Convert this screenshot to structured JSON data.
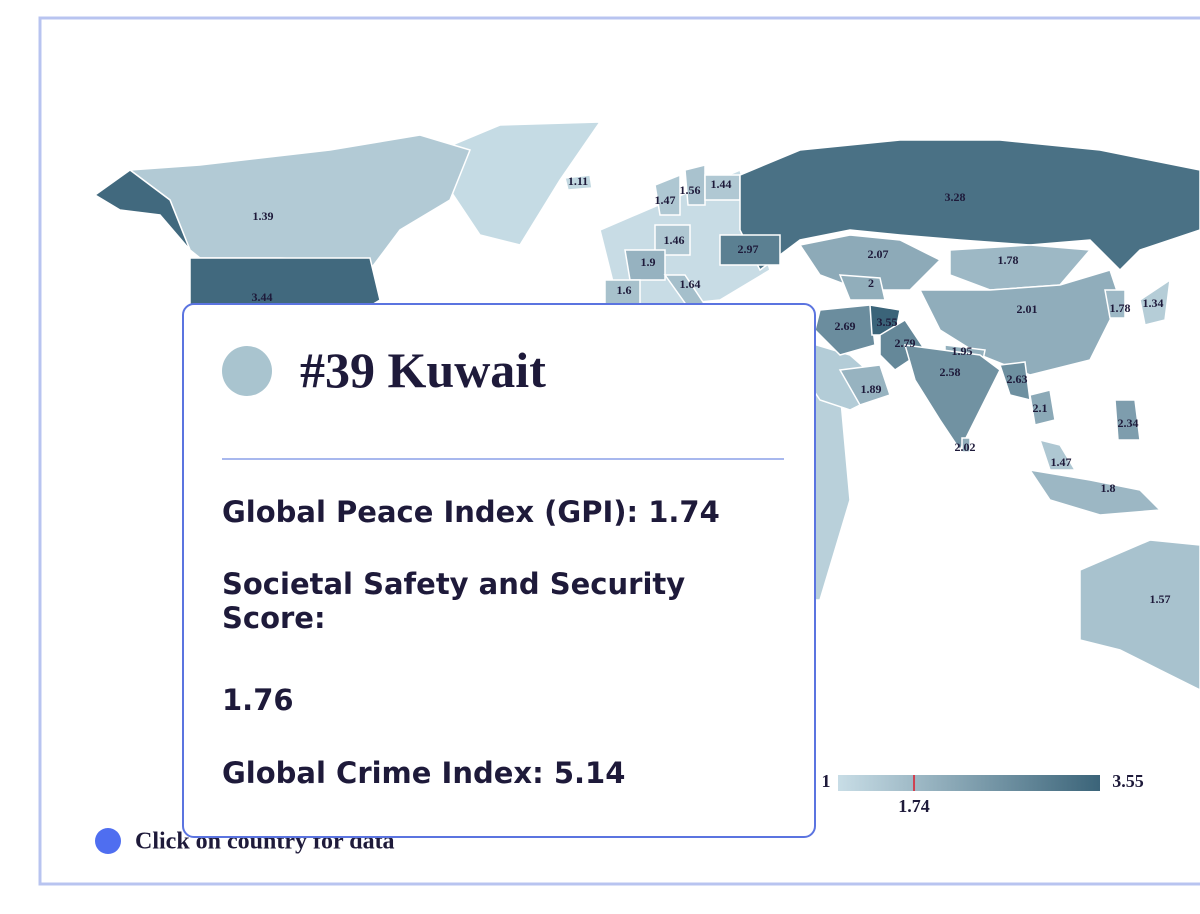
{
  "map": {
    "regions": [
      {
        "value": 1.11
      },
      {
        "value": 1.39
      },
      {
        "value": 1.47
      },
      {
        "value": 1.56
      },
      {
        "value": 1.44
      },
      {
        "value": 3.28
      },
      {
        "value": 2.07
      },
      {
        "value": 1.78
      },
      {
        "value": 1.46
      },
      {
        "value": 2.97
      },
      {
        "value": 1.9
      },
      {
        "value": 1.6
      },
      {
        "value": 1.64
      },
      {
        "value": 3.44
      },
      {
        "value": 2
      },
      {
        "value": 2.69
      },
      {
        "value": 3.55
      },
      {
        "value": 2.79
      },
      {
        "value": 2.01
      },
      {
        "value": 1.78
      },
      {
        "value": 1.34
      },
      {
        "value": 1.95
      },
      {
        "value": 2.58
      },
      {
        "value": 2.63
      },
      {
        "value": 1.89
      },
      {
        "value": 2.1
      },
      {
        "value": 2.34
      },
      {
        "value": 2.02
      },
      {
        "value": 1.47
      },
      {
        "value": 1.8
      },
      {
        "value": 1.57
      }
    ],
    "legend": {
      "min": 1,
      "max": 3.55,
      "marker": 1.74
    },
    "hint": "Click on country for data"
  },
  "tooltip": {
    "title": "#39 Kuwait",
    "gpi_label": "Global Peace Index (GPI):",
    "gpi": 1.74,
    "safety_label": "Societal Safety and Security Score:",
    "safety": 1.76,
    "crime_label": "Global Crime Index:",
    "crime": 5.14
  }
}
